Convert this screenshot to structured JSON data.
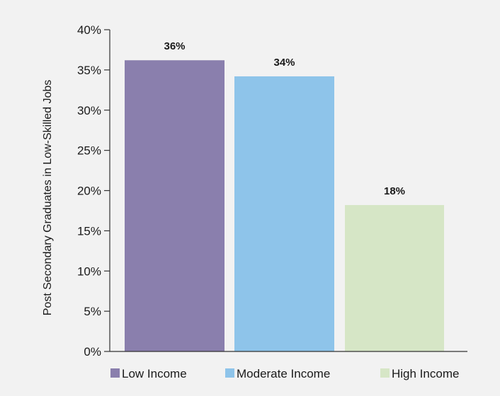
{
  "chart_data": {
    "type": "bar",
    "title": "",
    "xlabel": "",
    "ylabel": "Post Secondary Graduates in Low-Skilled Jobs",
    "ylim": [
      0,
      40
    ],
    "yticks": [
      0,
      5,
      10,
      15,
      20,
      25,
      30,
      35,
      40
    ],
    "ytick_labels": [
      "0%",
      "5%",
      "10%",
      "15%",
      "20%",
      "25%",
      "30%",
      "35%",
      "40%"
    ],
    "categories": [
      "Low Income",
      "Moderate Income",
      "High Income"
    ],
    "values": [
      36.2,
      34.2,
      18.2
    ],
    "data_labels": [
      "36%",
      "34%",
      "18%"
    ],
    "colors": [
      "#8a7fad",
      "#8ec4ea",
      "#d6e6c6"
    ],
    "grid": false,
    "legend": {
      "position": "bottom",
      "entries": [
        "Low Income",
        "Moderate Income",
        "High Income"
      ]
    }
  },
  "colors": {
    "background": "#f2f2f2",
    "axis": "#333333"
  }
}
